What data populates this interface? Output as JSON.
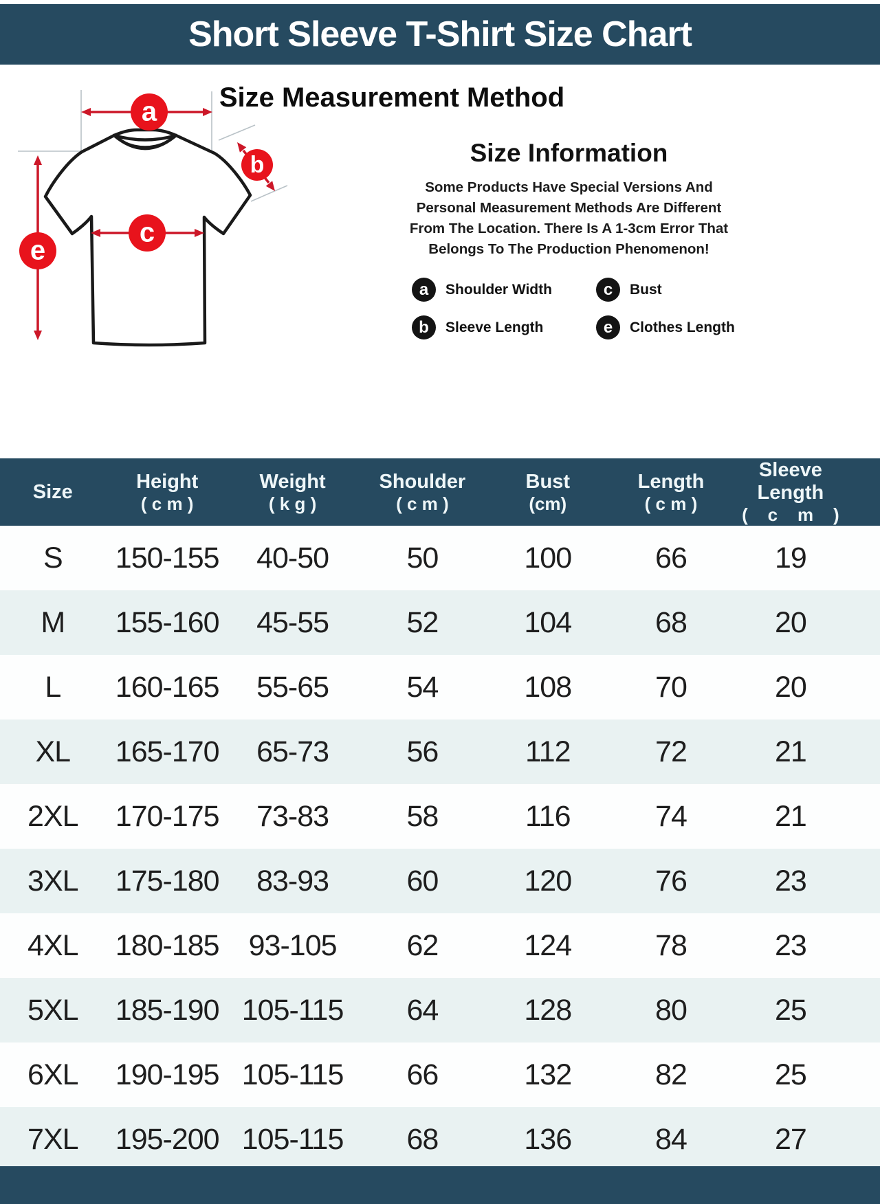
{
  "colors": {
    "banner_bg": "#264a60",
    "banner_text": "#ffffff",
    "row_bg": "#fdfefe",
    "row_alt_bg": "#e9f2f2",
    "marker_red": "#e8131c",
    "arrow_red": "#cc1728",
    "legend_badge_black": "#141414"
  },
  "banner": {
    "title": "Short Sleeve T-Shirt Size Chart"
  },
  "method": {
    "title": "Size Measurement Method",
    "markers": {
      "a": "a",
      "b": "b",
      "c": "c",
      "e": "e"
    },
    "info": {
      "title": "Size Information",
      "lines": [
        "Some Products Have Special Versions And",
        "Personal Measurement Methods Are Different",
        "From The Location. There Is A 1-3cm Error That",
        "Belongs To The Production Phenomenon!"
      ]
    },
    "legend": [
      {
        "key": "a",
        "label": "Shoulder Width"
      },
      {
        "key": "c",
        "label": "Bust"
      },
      {
        "key": "b",
        "label": "Sleeve Length"
      },
      {
        "key": "e",
        "label": "Clothes Length"
      }
    ]
  },
  "chart_data": {
    "type": "table",
    "title": "Short Sleeve T-Shirt Size Chart",
    "columns": [
      {
        "label": "Size",
        "sub": ""
      },
      {
        "label": "Height",
        "sub": "( c m )"
      },
      {
        "label": "Weight",
        "sub": "( k g )"
      },
      {
        "label": "Shoulder",
        "sub": "( c m )"
      },
      {
        "label": "Bust",
        "sub": "(cm)"
      },
      {
        "label": "Length",
        "sub": "( c m )"
      },
      {
        "label": "Sleeve Length",
        "sub": "(    c    m    )"
      }
    ],
    "rows": [
      [
        "S",
        "150-155",
        "40-50",
        "50",
        "100",
        "66",
        "19"
      ],
      [
        "M",
        "155-160",
        "45-55",
        "52",
        "104",
        "68",
        "20"
      ],
      [
        "L",
        "160-165",
        "55-65",
        "54",
        "108",
        "70",
        "20"
      ],
      [
        "XL",
        "165-170",
        "65-73",
        "56",
        "112",
        "72",
        "21"
      ],
      [
        "2XL",
        "170-175",
        "73-83",
        "58",
        "116",
        "74",
        "21"
      ],
      [
        "3XL",
        "175-180",
        "83-93",
        "60",
        "120",
        "76",
        "23"
      ],
      [
        "4XL",
        "180-185",
        "93-105",
        "62",
        "124",
        "78",
        "23"
      ],
      [
        "5XL",
        "185-190",
        "105-115",
        "64",
        "128",
        "80",
        "25"
      ],
      [
        "6XL",
        "190-195",
        "105-115",
        "66",
        "132",
        "82",
        "25"
      ],
      [
        "7XL",
        "195-200",
        "105-115",
        "68",
        "136",
        "84",
        "27"
      ]
    ]
  }
}
